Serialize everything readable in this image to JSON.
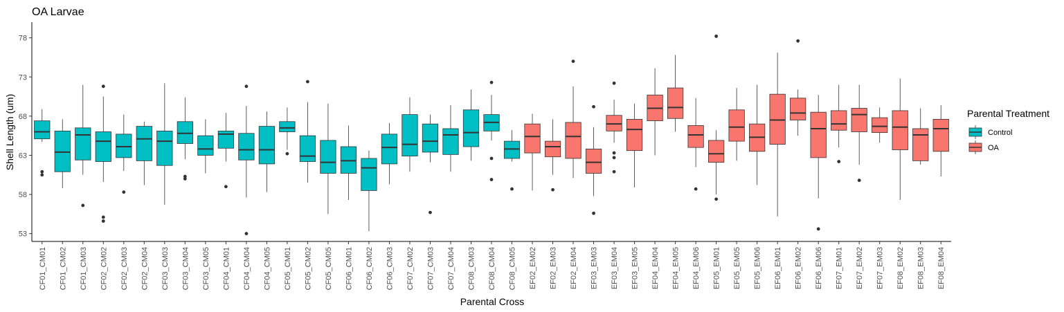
{
  "chart_data": {
    "type": "box",
    "title": "OA Larvae",
    "xlabel": "Parental Cross",
    "ylabel": "Shell Length (um)",
    "ylim": [
      52,
      80
    ],
    "yticks": [
      53,
      58,
      63,
      68,
      73,
      78
    ],
    "grid": false,
    "legend": {
      "title": "Parental Treatment",
      "position": "right",
      "entries": [
        {
          "name": "Control",
          "color": "#00BFC4"
        },
        {
          "name": "OA",
          "color": "#F8766D"
        }
      ]
    },
    "boxes": [
      {
        "category": "CF01_CM01",
        "group": "Control",
        "min": 64.7,
        "q1": 65.1,
        "median": 66.0,
        "q3": 67.4,
        "max": 68.9,
        "outliers": [
          60.9,
          60.5
        ]
      },
      {
        "category": "CF01_CM02",
        "group": "Control",
        "min": 58.8,
        "q1": 60.9,
        "median": 63.4,
        "q3": 66.1,
        "max": 67.6,
        "outliers": []
      },
      {
        "category": "CF01_CM03",
        "group": "Control",
        "min": 60.5,
        "q1": 62.4,
        "median": 65.6,
        "q3": 66.5,
        "max": 72.0,
        "outliers": [
          56.6
        ]
      },
      {
        "category": "CF02_CM02",
        "group": "Control",
        "min": 59.6,
        "q1": 62.2,
        "median": 64.8,
        "q3": 66.0,
        "max": 70.5,
        "outliers": [
          71.8,
          55.1,
          54.6
        ]
      },
      {
        "category": "CF02_CM03",
        "group": "Control",
        "min": 61.0,
        "q1": 62.7,
        "median": 64.1,
        "q3": 65.7,
        "max": 68.2,
        "outliers": [
          58.3
        ]
      },
      {
        "category": "CF02_CM04",
        "group": "Control",
        "min": 59.2,
        "q1": 62.3,
        "median": 65.1,
        "q3": 66.7,
        "max": 67.3,
        "outliers": []
      },
      {
        "category": "CF03_CM03",
        "group": "Control",
        "min": 56.7,
        "q1": 61.7,
        "median": 64.8,
        "q3": 66.1,
        "max": 72.2,
        "outliers": []
      },
      {
        "category": "CF03_CM04",
        "group": "Control",
        "min": 62.5,
        "q1": 64.5,
        "median": 65.8,
        "q3": 67.3,
        "max": 70.4,
        "outliers": [
          60.3,
          60.0
        ]
      },
      {
        "category": "CF03_CM05",
        "group": "Control",
        "min": 60.7,
        "q1": 63.0,
        "median": 63.8,
        "q3": 65.5,
        "max": 67.6,
        "outliers": []
      },
      {
        "category": "CF04_CM01",
        "group": "Control",
        "min": 62.2,
        "q1": 63.9,
        "median": 65.7,
        "q3": 66.1,
        "max": 68.4,
        "outliers": [
          59.0
        ]
      },
      {
        "category": "CF04_CM04",
        "group": "Control",
        "min": 57.6,
        "q1": 62.4,
        "median": 63.7,
        "q3": 65.8,
        "max": 69.3,
        "outliers": [
          71.8,
          53.0
        ]
      },
      {
        "category": "CF04_CM05",
        "group": "Control",
        "min": 58.3,
        "q1": 61.9,
        "median": 63.7,
        "q3": 66.7,
        "max": 68.6,
        "outliers": []
      },
      {
        "category": "CF05_CM01",
        "group": "Control",
        "min": 63.7,
        "q1": 66.0,
        "median": 66.5,
        "q3": 67.3,
        "max": 69.1,
        "outliers": [
          63.2
        ]
      },
      {
        "category": "CF05_CM02",
        "group": "Control",
        "min": 59.5,
        "q1": 62.2,
        "median": 62.9,
        "q3": 65.5,
        "max": 69.8,
        "outliers": [
          72.4
        ]
      },
      {
        "category": "CF05_CM05",
        "group": "Control",
        "min": 55.5,
        "q1": 60.7,
        "median": 62.1,
        "q3": 64.9,
        "max": 69.6,
        "outliers": []
      },
      {
        "category": "CF06_CM01",
        "group": "Control",
        "min": 57.3,
        "q1": 60.7,
        "median": 62.3,
        "q3": 64.1,
        "max": 66.8,
        "outliers": []
      },
      {
        "category": "CF06_CM02",
        "group": "Control",
        "min": 53.3,
        "q1": 58.5,
        "median": 61.4,
        "q3": 62.6,
        "max": 63.6,
        "outliers": []
      },
      {
        "category": "CF06_CM03",
        "group": "Control",
        "min": 59.3,
        "q1": 61.9,
        "median": 64.0,
        "q3": 65.7,
        "max": 67.1,
        "outliers": []
      },
      {
        "category": "CF07_CM02",
        "group": "Control",
        "min": 60.9,
        "q1": 62.9,
        "median": 64.4,
        "q3": 68.2,
        "max": 70.4,
        "outliers": []
      },
      {
        "category": "CF07_CM03",
        "group": "Control",
        "min": 62.1,
        "q1": 63.4,
        "median": 64.8,
        "q3": 67.0,
        "max": 68.2,
        "outliers": [
          55.7
        ]
      },
      {
        "category": "CF07_CM04",
        "group": "Control",
        "min": 60.9,
        "q1": 63.1,
        "median": 65.6,
        "q3": 66.4,
        "max": 69.4,
        "outliers": []
      },
      {
        "category": "CF08_CM03",
        "group": "Control",
        "min": 62.3,
        "q1": 64.1,
        "median": 65.9,
        "q3": 68.8,
        "max": 71.4,
        "outliers": []
      },
      {
        "category": "CF08_CM04",
        "group": "Control",
        "min": 64.9,
        "q1": 66.1,
        "median": 67.2,
        "q3": 68.2,
        "max": 70.7,
        "outliers": [
          72.3,
          62.6,
          59.9
        ]
      },
      {
        "category": "CF08_CM05",
        "group": "Control",
        "min": 62.2,
        "q1": 62.6,
        "median": 63.8,
        "q3": 64.8,
        "max": 66.2,
        "outliers": [
          58.7
        ]
      },
      {
        "category": "EF02_EM02",
        "group": "OA",
        "min": 58.5,
        "q1": 63.3,
        "median": 65.4,
        "q3": 67.0,
        "max": 68.3,
        "outliers": []
      },
      {
        "category": "EF02_EM03",
        "group": "OA",
        "min": 60.5,
        "q1": 62.8,
        "median": 64.1,
        "q3": 64.8,
        "max": 67.6,
        "outliers": [
          58.6
        ]
      },
      {
        "category": "EF02_EM04",
        "group": "OA",
        "min": 60.1,
        "q1": 62.6,
        "median": 65.4,
        "q3": 67.2,
        "max": 71.8,
        "outliers": [
          75.0
        ]
      },
      {
        "category": "EF03_EM03",
        "group": "OA",
        "min": 57.8,
        "q1": 60.7,
        "median": 62.1,
        "q3": 63.8,
        "max": 66.6,
        "outliers": [
          69.2,
          55.6
        ]
      },
      {
        "category": "EF03_EM04",
        "group": "OA",
        "min": 64.6,
        "q1": 66.1,
        "median": 67.0,
        "q3": 68.1,
        "max": 70.1,
        "outliers": [
          72.2,
          63.3,
          62.7,
          60.9
        ]
      },
      {
        "category": "EF03_EM05",
        "group": "OA",
        "min": 58.9,
        "q1": 63.6,
        "median": 66.3,
        "q3": 67.6,
        "max": 69.6,
        "outliers": []
      },
      {
        "category": "EF04_EM04",
        "group": "OA",
        "min": 63.0,
        "q1": 67.4,
        "median": 69.0,
        "q3": 70.7,
        "max": 74.1,
        "outliers": []
      },
      {
        "category": "EF04_EM05",
        "group": "OA",
        "min": 66.0,
        "q1": 67.7,
        "median": 69.1,
        "q3": 71.6,
        "max": 75.8,
        "outliers": []
      },
      {
        "category": "EF04_EM06",
        "group": "OA",
        "min": 61.5,
        "q1": 64.0,
        "median": 65.6,
        "q3": 66.8,
        "max": 70.3,
        "outliers": [
          58.7
        ]
      },
      {
        "category": "EF05_EM01",
        "group": "OA",
        "min": 58.0,
        "q1": 62.1,
        "median": 63.2,
        "q3": 64.9,
        "max": 66.2,
        "outliers": [
          78.2,
          57.4
        ]
      },
      {
        "category": "EF05_EM05",
        "group": "OA",
        "min": 62.3,
        "q1": 64.8,
        "median": 66.6,
        "q3": 68.8,
        "max": 71.6,
        "outliers": []
      },
      {
        "category": "EF05_EM06",
        "group": "OA",
        "min": 59.2,
        "q1": 63.5,
        "median": 65.3,
        "q3": 67.0,
        "max": 72.0,
        "outliers": []
      },
      {
        "category": "EF06_EM01",
        "group": "OA",
        "min": 55.2,
        "q1": 64.4,
        "median": 67.5,
        "q3": 70.8,
        "max": 76.1,
        "outliers": []
      },
      {
        "category": "EF06_EM02",
        "group": "OA",
        "min": 65.5,
        "q1": 67.5,
        "median": 68.4,
        "q3": 70.3,
        "max": 71.4,
        "outliers": [
          77.6
        ]
      },
      {
        "category": "EF06_EM06",
        "group": "OA",
        "min": 57.5,
        "q1": 62.7,
        "median": 66.4,
        "q3": 68.5,
        "max": 70.7,
        "outliers": [
          53.6
        ]
      },
      {
        "category": "EF07_EM01",
        "group": "OA",
        "min": 64.0,
        "q1": 66.2,
        "median": 67.0,
        "q3": 68.7,
        "max": 72.0,
        "outliers": [
          62.2
        ]
      },
      {
        "category": "EF07_EM02",
        "group": "OA",
        "min": 61.8,
        "q1": 66.0,
        "median": 68.2,
        "q3": 69.0,
        "max": 72.0,
        "outliers": [
          59.8
        ]
      },
      {
        "category": "EF07_EM03",
        "group": "OA",
        "min": 64.6,
        "q1": 65.9,
        "median": 66.7,
        "q3": 67.8,
        "max": 69.1,
        "outliers": []
      },
      {
        "category": "EF08_EM02",
        "group": "OA",
        "min": 57.3,
        "q1": 63.7,
        "median": 66.6,
        "q3": 68.7,
        "max": 72.8,
        "outliers": []
      },
      {
        "category": "EF08_EM03",
        "group": "OA",
        "min": 61.8,
        "q1": 62.3,
        "median": 65.6,
        "q3": 66.4,
        "max": 69.0,
        "outliers": []
      },
      {
        "category": "EF08_EM04",
        "group": "OA",
        "min": 60.3,
        "q1": 63.5,
        "median": 66.4,
        "q3": 67.6,
        "max": 69.4,
        "outliers": []
      }
    ]
  }
}
